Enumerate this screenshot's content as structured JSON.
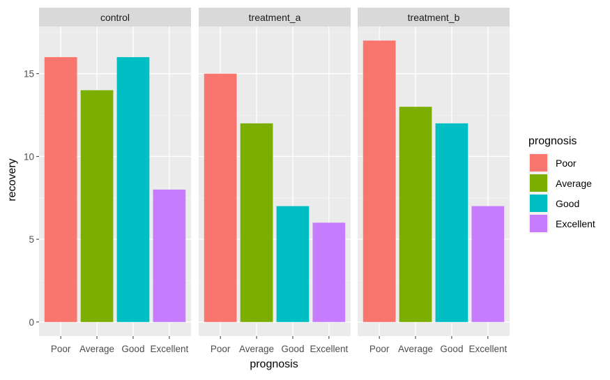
{
  "chart_data": {
    "type": "bar",
    "facet_var": "",
    "facets": [
      "control",
      "treatment_a",
      "treatment_b"
    ],
    "categories": [
      "Poor",
      "Average",
      "Good",
      "Excellent"
    ],
    "series": [
      {
        "name": "control",
        "values": [
          16,
          14,
          16,
          8
        ]
      },
      {
        "name": "treatment_a",
        "values": [
          15,
          12,
          7,
          6
        ]
      },
      {
        "name": "treatment_b",
        "values": [
          17,
          13,
          12,
          7
        ]
      }
    ],
    "xlabel": "prognosis",
    "ylabel": "recovery",
    "ylim": [
      -0.85,
      17.85
    ],
    "yticks": [
      0,
      5,
      10,
      15
    ],
    "grid": true,
    "legend": {
      "title": "prognosis",
      "position": "right",
      "items": [
        "Poor",
        "Average",
        "Good",
        "Excellent"
      ]
    },
    "colors": {
      "Poor": "#F8766D",
      "Average": "#7CAE00",
      "Good": "#00BFC4",
      "Excellent": "#C77CFF"
    }
  }
}
